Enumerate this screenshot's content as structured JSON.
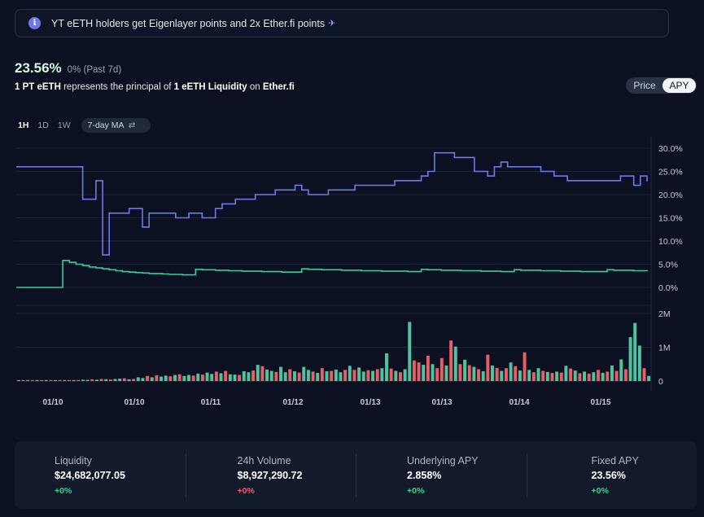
{
  "banner": {
    "text": "YT eETH holders get Eigenlayer points and 2x Ether.fi points",
    "icon": "info-icon"
  },
  "summary": {
    "apy_value": "23.56%",
    "apy_change": "0% (Past 7d)",
    "desc_a": "1 PT eETH",
    "desc_b": " represents the principal of ",
    "desc_c": "1 eETH Liquidity",
    "desc_d": " on ",
    "desc_e": "Ether.fi"
  },
  "toggle": {
    "price": "Price",
    "apy": "APY",
    "selected": "APY"
  },
  "range": {
    "options": [
      "1H",
      "1D",
      "1W"
    ],
    "selected": "1H",
    "ma": "7-day MA"
  },
  "colors": {
    "implied": "#6f78e8",
    "underlying": "#3cc9a1",
    "vol_up": "#4fc3a1",
    "vol_down": "#e85e66"
  },
  "chart_data": {
    "type": "line",
    "x_tick_labels": [
      "01/10",
      "01/10",
      "01/11",
      "01/12",
      "01/13",
      "01/13",
      "01/14",
      "01/15"
    ],
    "y_tick_labels": [
      "30.0%",
      "25.0%",
      "20.0%",
      "15.0%",
      "10.0%",
      "5.0%",
      "0.0%"
    ],
    "ylim": [
      0,
      30
    ],
    "series": [
      {
        "values": [
          26,
          26,
          26,
          26,
          26,
          26,
          26,
          26,
          26,
          26,
          19,
          19,
          23,
          7,
          16,
          16,
          16,
          17,
          17,
          13,
          16,
          16,
          16,
          16,
          15,
          15,
          16,
          16,
          15,
          15,
          17,
          18,
          18,
          19,
          19,
          19,
          20,
          20,
          20,
          21,
          21,
          21,
          22,
          21,
          20,
          20,
          20,
          21,
          21,
          21,
          21,
          22,
          22,
          22,
          22,
          22,
          22,
          23,
          23,
          23,
          23,
          24,
          25,
          29,
          29,
          29,
          28,
          28,
          28,
          25,
          25,
          24,
          26,
          27,
          26,
          26,
          26,
          26,
          26,
          25,
          25,
          24,
          24,
          23,
          23,
          23,
          23,
          23,
          23,
          23,
          23,
          24,
          24,
          22,
          24,
          23
        ]
      },
      {
        "values": [
          0,
          0,
          0,
          0,
          0,
          0,
          0,
          5.8,
          5.4,
          5,
          4.7,
          4.4,
          4.2,
          4,
          3.8,
          3.6,
          3.4,
          3.3,
          3.2,
          3.1,
          3,
          3,
          2.9,
          2.8,
          2.8,
          2.7,
          2.7,
          3.9,
          3.8,
          3.8,
          3.7,
          3.7,
          3.6,
          3.6,
          3.5,
          3.5,
          3.5,
          3.4,
          3.4,
          3.4,
          3.3,
          3.3,
          3.3,
          4,
          3.9,
          3.9,
          3.8,
          3.8,
          3.8,
          3.7,
          3.7,
          3.7,
          3.6,
          3.6,
          3.6,
          3.5,
          3.5,
          3.5,
          3.5,
          3.4,
          3.4,
          3.9,
          3.8,
          3.8,
          3.7,
          3.7,
          3.7,
          3.6,
          3.6,
          3.6,
          3.5,
          3.5,
          3.5,
          3.4,
          3.4,
          3.8,
          3.7,
          3.7,
          3.7,
          3.6,
          3.6,
          3.6,
          3.5,
          3.5,
          3.5,
          3.4,
          3.4,
          3.4,
          3.4,
          3.8,
          3.7,
          3.7,
          3.7,
          3.6,
          3.6,
          3.6
        ]
      }
    ],
    "volume": {
      "type": "bar",
      "y_tick_labels": [
        "2M",
        "1M",
        "0"
      ],
      "ylim": [
        0,
        2000000
      ],
      "values": [
        20000,
        15000,
        25000,
        10000,
        30000,
        20000,
        15000,
        12000,
        18000,
        22000,
        15000,
        20000,
        25000,
        30000,
        40000,
        35000,
        50000,
        40000,
        60000,
        55000,
        45000,
        60000,
        70000,
        80000,
        50000,
        60000,
        110000,
        90000,
        150000,
        110000,
        170000,
        130000,
        160000,
        140000,
        180000,
        200000,
        150000,
        180000,
        160000,
        220000,
        190000,
        250000,
        210000,
        280000,
        230000,
        300000,
        200000,
        190000,
        180000,
        290000,
        260000,
        310000,
        480000,
        440000,
        340000,
        300000,
        270000,
        420000,
        260000,
        350000,
        290000,
        250000,
        420000,
        330000,
        280000,
        240000,
        380000,
        290000,
        300000,
        340000,
        260000,
        330000,
        450000,
        330000,
        400000,
        280000,
        320000,
        300000,
        350000,
        380000,
        820000,
        370000,
        300000,
        260000,
        350000,
        1750000,
        610000,
        550000,
        480000,
        750000,
        500000,
        380000,
        680000,
        460000,
        1200000,
        1020000,
        500000,
        630000,
        470000,
        420000,
        350000,
        290000,
        780000,
        460000,
        390000,
        300000,
        380000,
        550000,
        440000,
        310000,
        850000,
        330000,
        260000,
        380000,
        300000,
        270000,
        240000,
        280000,
        250000,
        450000,
        370000,
        310000,
        230000,
        280000,
        220000,
        260000,
        330000,
        240000,
        280000,
        460000,
        300000,
        640000,
        350000,
        1300000,
        1720000,
        1050000,
        380000,
        150000
      ],
      "down": [
        false,
        true,
        false,
        true,
        false,
        true,
        false,
        true,
        false,
        true,
        false,
        true,
        false,
        true,
        false,
        false,
        true,
        false,
        true,
        false,
        true,
        false,
        false,
        true,
        false,
        true,
        false,
        false,
        true,
        false,
        true,
        false,
        false,
        true,
        false,
        true,
        false,
        false,
        true,
        false,
        true,
        false,
        false,
        true,
        false,
        true,
        false,
        false,
        true,
        false,
        false,
        true,
        false,
        true,
        false,
        false,
        true,
        false,
        false,
        true,
        false,
        true,
        false,
        false,
        true,
        false,
        true,
        false,
        true,
        false,
        false,
        true,
        false,
        true,
        false,
        false,
        true,
        false,
        true,
        false,
        false,
        true,
        false,
        true,
        false,
        false,
        true,
        true,
        false,
        true,
        false,
        true,
        true,
        false,
        true,
        false,
        true,
        false,
        true,
        false,
        true,
        false,
        true,
        false,
        true,
        false,
        true,
        false,
        true,
        false,
        true,
        false,
        true,
        false,
        true,
        false,
        true,
        false,
        true,
        false,
        true,
        false,
        true,
        false,
        true,
        false,
        true,
        false,
        true,
        false,
        true,
        false,
        true,
        false,
        false,
        false,
        true,
        false
      ]
    }
  },
  "stats": [
    {
      "label": "Liquidity",
      "value": "$24,682,077.05",
      "change": "+0%",
      "dir": "pos"
    },
    {
      "label": "24h Volume",
      "value": "$8,927,290.72",
      "change": "+0%",
      "dir": "neg"
    },
    {
      "label": "Underlying APY",
      "value": "2.858%",
      "change": "+0%",
      "dir": "pos"
    },
    {
      "label": "Fixed APY",
      "value": "23.56%",
      "change": "+0%",
      "dir": "pos"
    }
  ]
}
